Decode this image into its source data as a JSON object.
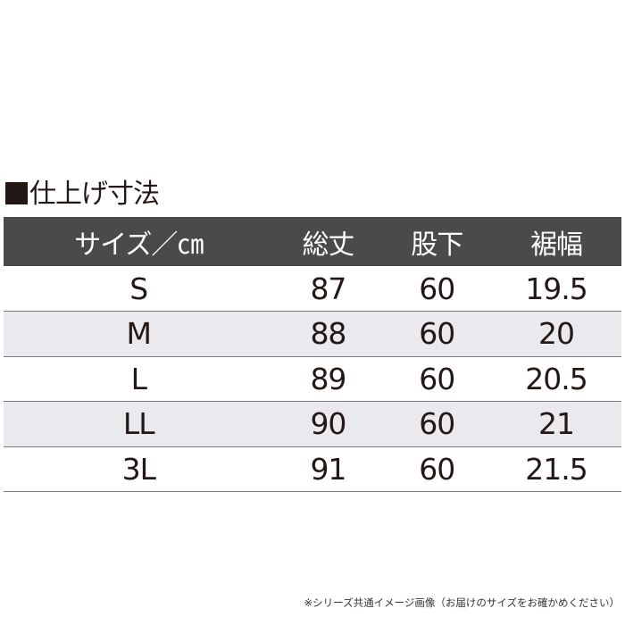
{
  "title": "仕上げ寸法",
  "table": {
    "headers": [
      "サイズ／㎝",
      "総丈",
      "股下",
      "裾幅"
    ],
    "rows": [
      [
        "S",
        "87",
        "60",
        "19.5"
      ],
      [
        "M",
        "88",
        "60",
        "20"
      ],
      [
        "L",
        "89",
        "60",
        "20.5"
      ],
      [
        "LL",
        "90",
        "60",
        "21"
      ],
      [
        "3L",
        "91",
        "60",
        "21.5"
      ]
    ]
  },
  "note": "※シリーズ共通イメージ画像（お届けのサイズをお確かめください）",
  "colors": {
    "header_bg": "#4c4949",
    "stripe_bg": "#e9e9ee",
    "text": "#231815"
  }
}
